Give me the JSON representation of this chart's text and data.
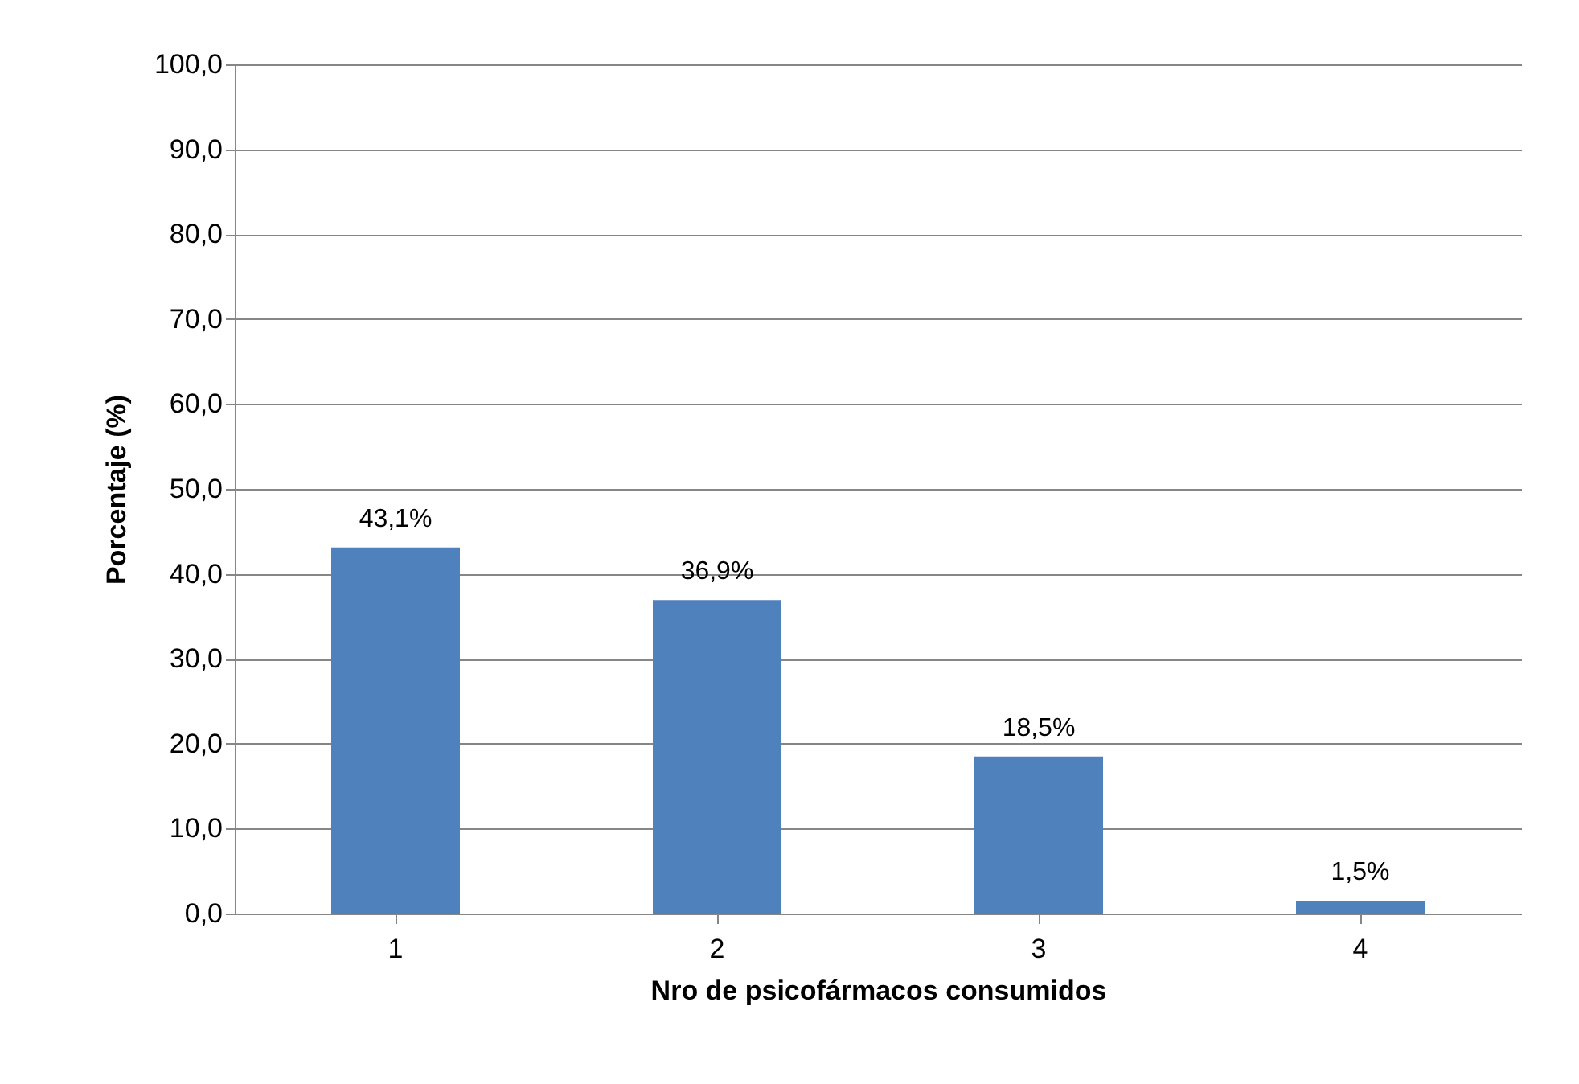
{
  "chart_data": {
    "type": "bar",
    "xlabel": "Nro de psicofármacos consumidos",
    "ylabel": "Porcentaje (%)",
    "categories": [
      "1",
      "2",
      "3",
      "4"
    ],
    "values": [
      43.1,
      36.9,
      18.5,
      1.5
    ],
    "value_labels": [
      "43,1%",
      "36,9%",
      "18,5%",
      "1,5%"
    ],
    "color": "#4f81bd",
    "ylim": [
      0,
      100
    ],
    "yticks": [
      {
        "value": 0,
        "label": "0,0"
      },
      {
        "value": 10,
        "label": "10,0"
      },
      {
        "value": 20,
        "label": "20,0"
      },
      {
        "value": 30,
        "label": "30,0"
      },
      {
        "value": 40,
        "label": "40,0"
      },
      {
        "value": 50,
        "label": "50,0"
      },
      {
        "value": 60,
        "label": "60,0"
      },
      {
        "value": 70,
        "label": "70,0"
      },
      {
        "value": 80,
        "label": "80,0"
      },
      {
        "value": 90,
        "label": "90,0"
      },
      {
        "value": 100,
        "label": "100,0"
      }
    ],
    "grid": "y"
  }
}
